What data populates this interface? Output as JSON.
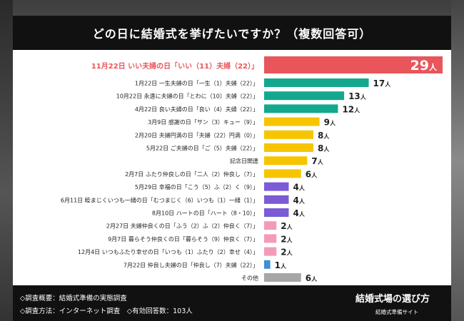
{
  "title": "どの日に結婚式を挙げたいですか？（複数回答可）",
  "chart_data": {
    "type": "bar",
    "orientation": "horizontal",
    "title": "どの日に結婚式を挙げたいですか？（複数回答可）",
    "unit": "人",
    "xlim": [
      0,
      29
    ],
    "categories": [
      "11月22日 いい夫婦の日「いい（11）夫婦（22）」",
      "1月22日 一生夫婦の日「一生（1）夫婦（22）」",
      "10月22日 永遠に夫婦の日「とわに（10）夫婦（22）」",
      "4月22日 良い夫婦の日「良い（4）夫婦（22）」",
      "3月9日 感謝の日「サン（3）キュー（9）」",
      "2月20日 夫婦円満の日「夫婦（22）円満（0）」",
      "5月22日 ご夫婦の日「ご（5）夫婦（22）」",
      "記念日関連",
      "2月7日 ふたり仲良しの日「二人（2）仲良し（7）」",
      "5月29日 幸福の日「こう（5）ふ（2）く（9）」",
      "6月11日 睦まじくいつも一緒の日「むつまじく（6）いつも（1）一緒（1）」",
      "8月10日 ハートの日「ハート（8・10）」",
      "2月27日 夫婦仲良くの日「ふう（2）ふ（2）仲良く（7）」",
      "9月7日 暮らそう仲良くの日「暮らそう（9）仲良く（7）」",
      "12月4日 いつもふたり幸せの日「いつも（1）ふたり（2）幸せ（4）」",
      "7月22日 仲良し夫婦の日「仲良し（7）夫婦（22）」",
      "その他"
    ],
    "values": [
      29,
      17,
      13,
      12,
      9,
      8,
      8,
      7,
      6,
      4,
      4,
      4,
      2,
      2,
      2,
      1,
      6
    ],
    "colors": [
      "#e8555a",
      "#13a88e",
      "#13a88e",
      "#13a88e",
      "#f6c500",
      "#f6c500",
      "#f6c500",
      "#f6c500",
      "#f6c500",
      "#7b5bd6",
      "#7b5bd6",
      "#7b5bd6",
      "#f49ab8",
      "#f49ab8",
      "#f49ab8",
      "#3d8fd8",
      "#a6a6a6"
    ],
    "highlight_index": 0,
    "highlight_label_color": "#e8555a"
  },
  "footer": {
    "line1": "◇調査概要：結婚式準備の実態調査",
    "line2": "◇調査方法：インターネット調査　◇有効回答数：103人",
    "brand": "結婚式場の選び方",
    "brand_sub": "結婚式準備サイト"
  }
}
